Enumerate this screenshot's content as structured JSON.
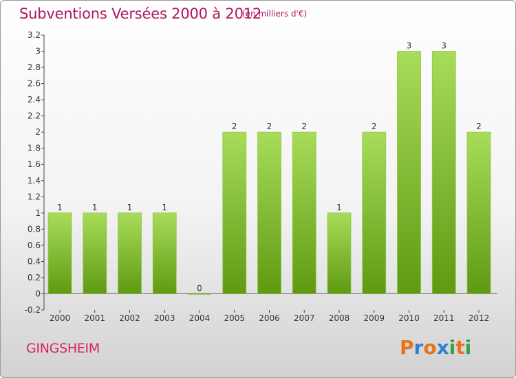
{
  "header": {
    "title": "Subventions Versées 2000 à 2012",
    "subtitle": "(en milliers d'€)"
  },
  "footer": {
    "commune": "GINGSHEIM",
    "logo": "Proxiti",
    "logo_colors": [
      "#e8731c",
      "#2f7fd2",
      "#e8731c",
      "#2f7fd2",
      "#2fa24a",
      "#e8731c",
      "#2fa24a"
    ]
  },
  "colors": {
    "bar_light": "#a8dc5a",
    "bar_dark": "#5f9a12",
    "title": "#b0175f"
  },
  "chart_data": {
    "type": "bar",
    "categories": [
      "2000",
      "2001",
      "2002",
      "2003",
      "2004",
      "2005",
      "2006",
      "2007",
      "2008",
      "2009",
      "2010",
      "2011",
      "2012"
    ],
    "values": [
      1,
      1,
      1,
      1,
      0,
      2,
      2,
      2,
      1,
      2,
      3,
      3,
      2
    ],
    "value_labels": [
      "1",
      "1",
      "1",
      "1",
      "0",
      "2",
      "2",
      "2",
      "1",
      "2",
      "3",
      "3",
      "2"
    ],
    "yticks": [
      -0.2,
      0,
      0.2,
      0.4,
      0.6,
      0.8,
      1,
      1.2,
      1.4,
      1.6,
      1.8,
      2,
      2.2,
      2.4,
      2.6,
      2.8,
      3,
      3.2
    ],
    "ytick_labels": [
      "-0.2",
      "0",
      "0.2",
      "0.4",
      "0.6",
      "0.8",
      "1",
      "1.2",
      "1.4",
      "1.6",
      "1.8",
      "2",
      "2.2",
      "2.4",
      "2.6",
      "2.8",
      "3",
      "3.2"
    ],
    "ylim": [
      -0.2,
      3.2
    ],
    "grid": false,
    "legend": "none"
  }
}
